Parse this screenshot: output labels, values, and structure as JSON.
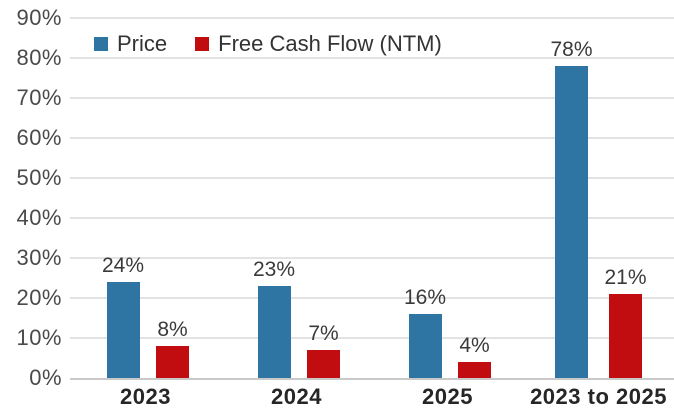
{
  "chart_data": {
    "type": "bar",
    "title": "",
    "categories": [
      "2023",
      "2024",
      "2025",
      "2023 to 2025"
    ],
    "series": [
      {
        "name": "Price",
        "color": "#2E75A4",
        "values": [
          24,
          23,
          16,
          78
        ]
      },
      {
        "name": "Free Cash Flow (NTM)",
        "color": "#C20D10",
        "values": [
          8,
          7,
          4,
          21
        ]
      }
    ],
    "value_label_suffix": "%",
    "ylim": [
      0,
      90
    ],
    "ytick_step": 10,
    "yticks": [
      "90%",
      "80%",
      "70%",
      "60%",
      "50%",
      "40%",
      "30%",
      "20%",
      "10%",
      "0%"
    ],
    "grid": true,
    "legend_position": "top-left",
    "colors": {
      "background": "#FFFFFF",
      "gridline": "#E3E3E3",
      "axis_line": "#C9C9C9",
      "tick_label": "#4A4A4A",
      "value_label": "#3A3A3A",
      "category_label": "#262626"
    }
  }
}
